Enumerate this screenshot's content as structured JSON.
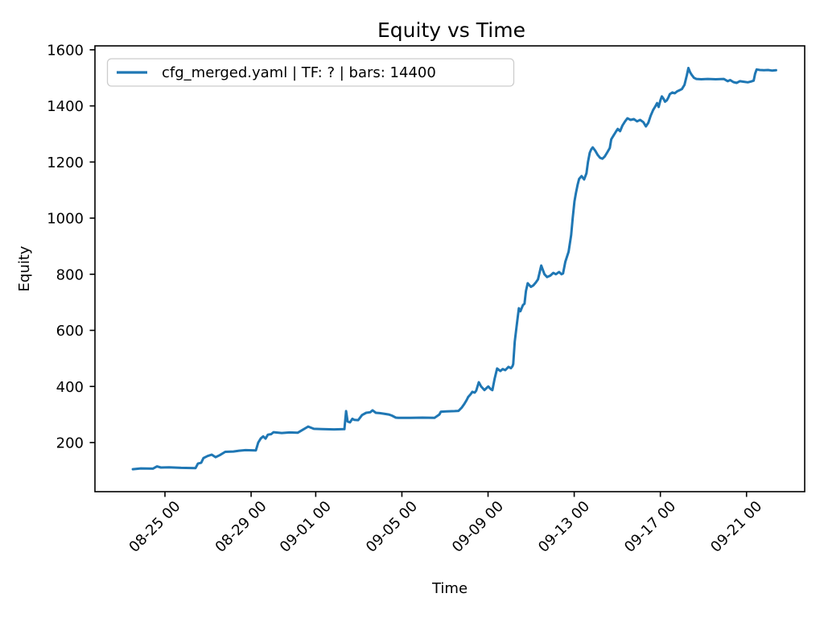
{
  "figure": {
    "background": "#ffffff",
    "text_color": "#000000"
  },
  "chart_data": {
    "type": "line",
    "title": "Equity vs Time",
    "xlabel": "Time",
    "ylabel": "Equity",
    "legend": {
      "position": "upper-left",
      "label": "cfg_merged.yaml | TF: ? | bars: 14400",
      "border_color": "#cccccc",
      "background": "#ffffff"
    },
    "line_color": "#1f77b4",
    "axis_color": "#000000",
    "grid": false,
    "x_scale_note": "x values are day indices read from the date ticks: Aug d = d, Sep d = 31 + d (e.g. 09-01 00:00 = 32.0); fractions are hours",
    "xlim": [
      21.75,
      54.7
    ],
    "ylim": [
      25,
      1614
    ],
    "x_ticks": [
      {
        "x": 25,
        "label": "08-25 00"
      },
      {
        "x": 29,
        "label": "08-29 00"
      },
      {
        "x": 32,
        "label": "09-01 00"
      },
      {
        "x": 36,
        "label": "09-05 00"
      },
      {
        "x": 40,
        "label": "09-09 00"
      },
      {
        "x": 44,
        "label": "09-13 00"
      },
      {
        "x": 48,
        "label": "09-17 00"
      },
      {
        "x": 52,
        "label": "09-21 00"
      }
    ],
    "y_ticks": [
      200,
      400,
      600,
      800,
      1000,
      1200,
      1400,
      1600
    ],
    "series": [
      {
        "name": "cfg_merged.yaml | TF: ? | bars: 14400",
        "points": [
          [
            23.51,
            105
          ],
          [
            23.88,
            108
          ],
          [
            24.44,
            107
          ],
          [
            24.63,
            115
          ],
          [
            24.81,
            111
          ],
          [
            25.19,
            112
          ],
          [
            25.75,
            110
          ],
          [
            26.42,
            109
          ],
          [
            26.53,
            125
          ],
          [
            26.68,
            128
          ],
          [
            26.79,
            145
          ],
          [
            26.98,
            152
          ],
          [
            27.17,
            157
          ],
          [
            27.35,
            148
          ],
          [
            27.54,
            155
          ],
          [
            27.8,
            167
          ],
          [
            28.18,
            168
          ],
          [
            28.44,
            171
          ],
          [
            28.74,
            173
          ],
          [
            29.22,
            172
          ],
          [
            29.33,
            200
          ],
          [
            29.45,
            215
          ],
          [
            29.56,
            222
          ],
          [
            29.67,
            214
          ],
          [
            29.78,
            228
          ],
          [
            29.93,
            230
          ],
          [
            30.04,
            237
          ],
          [
            30.42,
            234
          ],
          [
            30.79,
            236
          ],
          [
            31.16,
            235
          ],
          [
            31.43,
            247
          ],
          [
            31.65,
            257
          ],
          [
            31.91,
            249
          ],
          [
            32.29,
            248
          ],
          [
            32.85,
            247
          ],
          [
            33.33,
            248
          ],
          [
            33.41,
            312
          ],
          [
            33.48,
            275
          ],
          [
            33.59,
            272
          ],
          [
            33.7,
            285
          ],
          [
            33.78,
            281
          ],
          [
            33.97,
            280
          ],
          [
            34.15,
            298
          ],
          [
            34.34,
            306
          ],
          [
            34.53,
            308
          ],
          [
            34.64,
            315
          ],
          [
            34.79,
            306
          ],
          [
            34.97,
            305
          ],
          [
            35.16,
            303
          ],
          [
            35.39,
            300
          ],
          [
            35.54,
            296
          ],
          [
            35.72,
            289
          ],
          [
            35.83,
            288
          ],
          [
            36.39,
            288
          ],
          [
            36.95,
            289
          ],
          [
            37.51,
            288
          ],
          [
            37.74,
            300
          ],
          [
            37.81,
            310
          ],
          [
            38.07,
            311
          ],
          [
            38.45,
            312
          ],
          [
            38.63,
            313
          ],
          [
            38.78,
            325
          ],
          [
            38.9,
            338
          ],
          [
            39.01,
            352
          ],
          [
            39.08,
            363
          ],
          [
            39.19,
            372
          ],
          [
            39.27,
            381
          ],
          [
            39.38,
            378
          ],
          [
            39.45,
            385
          ],
          [
            39.57,
            415
          ],
          [
            39.68,
            400
          ],
          [
            39.83,
            387
          ],
          [
            39.94,
            395
          ],
          [
            40.01,
            400
          ],
          [
            40.13,
            390
          ],
          [
            40.2,
            387
          ],
          [
            40.31,
            429
          ],
          [
            40.42,
            464
          ],
          [
            40.57,
            455
          ],
          [
            40.68,
            462
          ],
          [
            40.8,
            458
          ],
          [
            40.95,
            470
          ],
          [
            41.06,
            465
          ],
          [
            41.13,
            472
          ],
          [
            41.17,
            480
          ],
          [
            41.24,
            560
          ],
          [
            41.32,
            610
          ],
          [
            41.43,
            679
          ],
          [
            41.5,
            668
          ],
          [
            41.62,
            690
          ],
          [
            41.69,
            695
          ],
          [
            41.76,
            740
          ],
          [
            41.84,
            768
          ],
          [
            41.99,
            755
          ],
          [
            42.1,
            760
          ],
          [
            42.21,
            770
          ],
          [
            42.32,
            782
          ],
          [
            42.47,
            831
          ],
          [
            42.62,
            800
          ],
          [
            42.74,
            790
          ],
          [
            42.89,
            795
          ],
          [
            43.03,
            805
          ],
          [
            43.15,
            800
          ],
          [
            43.3,
            808
          ],
          [
            43.41,
            800
          ],
          [
            43.48,
            803
          ],
          [
            43.59,
            845
          ],
          [
            43.74,
            880
          ],
          [
            43.86,
            940
          ],
          [
            43.93,
            1000
          ],
          [
            44.01,
            1060
          ],
          [
            44.08,
            1089
          ],
          [
            44.16,
            1120
          ],
          [
            44.23,
            1140
          ],
          [
            44.34,
            1150
          ],
          [
            44.46,
            1138
          ],
          [
            44.57,
            1160
          ],
          [
            44.64,
            1200
          ],
          [
            44.72,
            1233
          ],
          [
            44.79,
            1245
          ],
          [
            44.86,
            1252
          ],
          [
            44.98,
            1240
          ],
          [
            45.09,
            1225
          ],
          [
            45.2,
            1215
          ],
          [
            45.31,
            1212
          ],
          [
            45.42,
            1220
          ],
          [
            45.54,
            1235
          ],
          [
            45.65,
            1250
          ],
          [
            45.72,
            1281
          ],
          [
            45.83,
            1295
          ],
          [
            45.95,
            1310
          ],
          [
            46.02,
            1318
          ],
          [
            46.13,
            1310
          ],
          [
            46.24,
            1330
          ],
          [
            46.36,
            1345
          ],
          [
            46.47,
            1356
          ],
          [
            46.62,
            1350
          ],
          [
            46.77,
            1353
          ],
          [
            46.92,
            1345
          ],
          [
            47.06,
            1350
          ],
          [
            47.21,
            1342
          ],
          [
            47.33,
            1327
          ],
          [
            47.44,
            1340
          ],
          [
            47.55,
            1365
          ],
          [
            47.66,
            1385
          ],
          [
            47.77,
            1399
          ],
          [
            47.85,
            1410
          ],
          [
            47.92,
            1396
          ],
          [
            48.0,
            1420
          ],
          [
            48.07,
            1434
          ],
          [
            48.15,
            1425
          ],
          [
            48.22,
            1415
          ],
          [
            48.3,
            1420
          ],
          [
            48.37,
            1430
          ],
          [
            48.44,
            1442
          ],
          [
            48.56,
            1448
          ],
          [
            48.67,
            1445
          ],
          [
            48.78,
            1452
          ],
          [
            48.89,
            1456
          ],
          [
            49.0,
            1460
          ],
          [
            49.12,
            1475
          ],
          [
            49.23,
            1510
          ],
          [
            49.3,
            1535
          ],
          [
            49.38,
            1520
          ],
          [
            49.45,
            1511
          ],
          [
            49.56,
            1500
          ],
          [
            49.67,
            1496
          ],
          [
            49.9,
            1495
          ],
          [
            50.2,
            1496
          ],
          [
            50.57,
            1495
          ],
          [
            50.94,
            1496
          ],
          [
            51.13,
            1488
          ],
          [
            51.24,
            1492
          ],
          [
            51.39,
            1485
          ],
          [
            51.54,
            1482
          ],
          [
            51.69,
            1488
          ],
          [
            51.88,
            1486
          ],
          [
            52.06,
            1484
          ],
          [
            52.21,
            1487
          ],
          [
            52.33,
            1490
          ],
          [
            52.4,
            1515
          ],
          [
            52.47,
            1530
          ],
          [
            52.62,
            1528
          ],
          [
            52.81,
            1527
          ],
          [
            53.0,
            1528
          ],
          [
            53.18,
            1526
          ],
          [
            53.37,
            1527
          ]
        ]
      }
    ]
  }
}
